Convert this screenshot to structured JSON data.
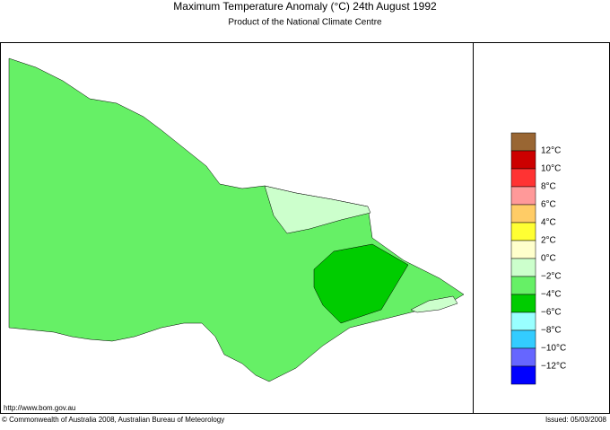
{
  "header": {
    "title": "Maximum Temperature Anomaly (°C)  24th August 1992",
    "subtitle": "Product of the National Climate Centre"
  },
  "legend": {
    "colors": [
      "#996633",
      "#cc0000",
      "#ff3333",
      "#ff9999",
      "#ffcc66",
      "#ffff33",
      "#ffffcc",
      "#ccffcc",
      "#66f066",
      "#00cc00",
      "#99ffff",
      "#33ccff",
      "#6666ff",
      "#0000ff"
    ],
    "labels": [
      "12°C",
      "10°C",
      "8°C",
      "6°C",
      "4°C",
      "2°C",
      "0°C",
      "−2°C",
      "−4°C",
      "−6°C",
      "−8°C",
      "−10°C",
      "−12°C"
    ]
  },
  "footer": {
    "url": "http://www.bom.gov.au",
    "copyright": "© Commonwealth of Australia 2008, Australian Bureau of Meteorology",
    "issued": "Issued: 05/03/2008"
  }
}
